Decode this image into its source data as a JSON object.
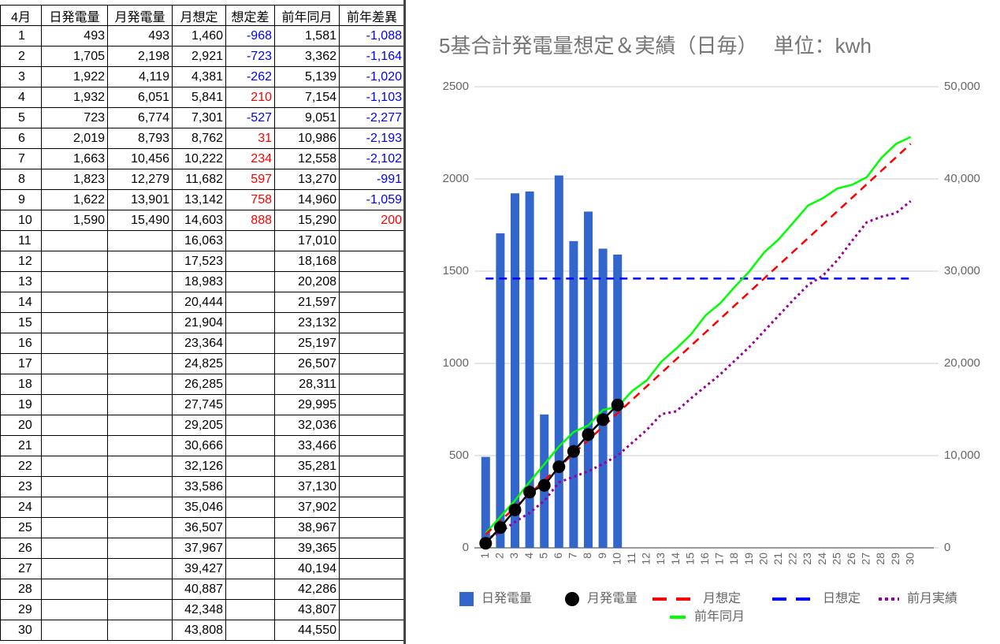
{
  "table": {
    "header": [
      "4月",
      "日発電量",
      "月発電量",
      "月想定",
      "想定差",
      "前年同月",
      "前年差異"
    ],
    "rows": [
      [
        "1",
        "493",
        "493",
        "1,460",
        "-968",
        "1,581",
        "-1,088"
      ],
      [
        "2",
        "1,705",
        "2,198",
        "2,921",
        "-723",
        "3,362",
        "-1,164"
      ],
      [
        "3",
        "1,922",
        "4,119",
        "4,381",
        "-262",
        "5,139",
        "-1,020"
      ],
      [
        "4",
        "1,932",
        "6,051",
        "5,841",
        "210",
        "7,154",
        "-1,103"
      ],
      [
        "5",
        "723",
        "6,774",
        "7,301",
        "-527",
        "9,051",
        "-2,277"
      ],
      [
        "6",
        "2,019",
        "8,793",
        "8,762",
        "31",
        "10,986",
        "-2,193"
      ],
      [
        "7",
        "1,663",
        "10,456",
        "10,222",
        "234",
        "12,558",
        "-2,102"
      ],
      [
        "8",
        "1,823",
        "12,279",
        "11,682",
        "597",
        "13,270",
        "-991"
      ],
      [
        "9",
        "1,622",
        "13,901",
        "13,142",
        "758",
        "14,960",
        "-1,059"
      ],
      [
        "10",
        "1,590",
        "15,490",
        "14,603",
        "888",
        "15,290",
        "200"
      ],
      [
        "11",
        null,
        null,
        "16,063",
        null,
        "17,010",
        null
      ],
      [
        "12",
        null,
        null,
        "17,523",
        null,
        "18,168",
        null
      ],
      [
        "13",
        null,
        null,
        "18,983",
        null,
        "20,208",
        null
      ],
      [
        "14",
        null,
        null,
        "20,444",
        null,
        "21,597",
        null
      ],
      [
        "15",
        null,
        null,
        "21,904",
        null,
        "23,132",
        null
      ],
      [
        "16",
        null,
        null,
        "23,364",
        null,
        "25,197",
        null
      ],
      [
        "17",
        null,
        null,
        "24,825",
        null,
        "26,507",
        null
      ],
      [
        "18",
        null,
        null,
        "26,285",
        null,
        "28,311",
        null
      ],
      [
        "19",
        null,
        null,
        "27,745",
        null,
        "29,995",
        null
      ],
      [
        "20",
        null,
        null,
        "29,205",
        null,
        "32,036",
        null
      ],
      [
        "21",
        null,
        null,
        "30,666",
        null,
        "33,466",
        null
      ],
      [
        "22",
        null,
        null,
        "32,126",
        null,
        "35,281",
        null
      ],
      [
        "23",
        null,
        null,
        "33,586",
        null,
        "37,130",
        null
      ],
      [
        "24",
        null,
        null,
        "35,046",
        null,
        "37,902",
        null
      ],
      [
        "25",
        null,
        null,
        "36,507",
        null,
        "38,967",
        null
      ],
      [
        "26",
        null,
        null,
        "37,967",
        null,
        "39,365",
        null
      ],
      [
        "27",
        null,
        null,
        "39,427",
        null,
        "40,194",
        null
      ],
      [
        "28",
        null,
        null,
        "40,887",
        null,
        "42,286",
        null
      ],
      [
        "29",
        null,
        null,
        "42,348",
        null,
        "43,807",
        null
      ],
      [
        "30",
        null,
        null,
        "43,808",
        null,
        "44,550",
        null
      ]
    ]
  },
  "chart_data": {
    "type": "combo",
    "title": "5基合計発電量想定＆実績（日毎）　 単位：kwh",
    "categories": [
      "1",
      "2",
      "3",
      "4",
      "5",
      "6",
      "7",
      "8",
      "9",
      "10",
      "11",
      "12",
      "13",
      "14",
      "15",
      "16",
      "17",
      "18",
      "19",
      "20",
      "21",
      "22",
      "23",
      "24",
      "25",
      "26",
      "27",
      "28",
      "29",
      "30"
    ],
    "ylim": [
      0,
      2500
    ],
    "yticks": [
      0,
      500,
      1000,
      1500,
      2000,
      2500
    ],
    "y2lim": [
      0,
      50000
    ],
    "y2ticks": [
      0,
      {
        "value": 10000,
        "label": "10,000"
      },
      {
        "value": 20000,
        "label": "20,000"
      },
      {
        "value": 30000,
        "label": "30,000"
      },
      {
        "value": 40000,
        "label": "40,000"
      },
      {
        "value": 50000,
        "label": "50,000"
      }
    ],
    "grid": true,
    "legend": "bottom",
    "series": [
      {
        "name": "日発電量",
        "color": "#3366cc",
        "style": "bar",
        "values": [
          493,
          1705,
          1922,
          1932,
          723,
          2019,
          1663,
          1823,
          1622,
          1590,
          null,
          null,
          null,
          null,
          null,
          null,
          null,
          null,
          null,
          null,
          null,
          null,
          null,
          null,
          null,
          null,
          null,
          null,
          null,
          null
        ]
      },
      {
        "name": "月発電量",
        "color": "#000000",
        "style": "markers",
        "axis": "y2",
        "values": [
          493,
          2198,
          4119,
          6051,
          6774,
          8793,
          10456,
          12279,
          13901,
          15490,
          null,
          null,
          null,
          null,
          null,
          null,
          null,
          null,
          null,
          null,
          null,
          null,
          null,
          null,
          null,
          null,
          null,
          null,
          null,
          null
        ]
      },
      {
        "name": "月想定",
        "color": "#ff0000",
        "style": "dashed",
        "axis": "y2",
        "values": [
          1460,
          2921,
          4381,
          5841,
          7301,
          8762,
          10222,
          11682,
          13142,
          14603,
          16063,
          17523,
          18983,
          20444,
          21904,
          23364,
          24825,
          26285,
          27745,
          29205,
          30666,
          32126,
          33586,
          35046,
          36507,
          37967,
          39427,
          40887,
          42348,
          43808
        ]
      },
      {
        "name": "日想定",
        "color": "#0000ff",
        "style": "dashed",
        "values": [
          1460,
          1460,
          1460,
          1460,
          1460,
          1460,
          1460,
          1460,
          1460,
          1460,
          1460,
          1460,
          1460,
          1460,
          1460,
          1460,
          1460,
          1460,
          1460,
          1460,
          1460,
          1460,
          1460,
          1460,
          1460,
          1460,
          1460,
          1460,
          1460,
          1460
        ]
      },
      {
        "name": "前月実績",
        "color": "#990099",
        "style": "dotted",
        "axis": "y2",
        "values": [
          900,
          1700,
          2800,
          3800,
          5100,
          7100,
          7700,
          8300,
          9100,
          10000,
          11400,
          12800,
          14500,
          14800,
          16200,
          17500,
          18800,
          20300,
          21800,
          23500,
          25200,
          26900,
          28500,
          29500,
          31200,
          33300,
          35300,
          35900,
          36300,
          37600
        ]
      },
      {
        "name": "前年同月",
        "color": "#00ff00",
        "style": "solid",
        "axis": "y2",
        "values": [
          1581,
          3362,
          5139,
          7154,
          9051,
          10986,
          12558,
          13270,
          14960,
          15290,
          17010,
          18168,
          20208,
          21597,
          23132,
          25197,
          26507,
          28311,
          29995,
          32036,
          33466,
          35281,
          37130,
          37902,
          38967,
          39365,
          40194,
          42286,
          43807,
          44550
        ]
      }
    ]
  }
}
